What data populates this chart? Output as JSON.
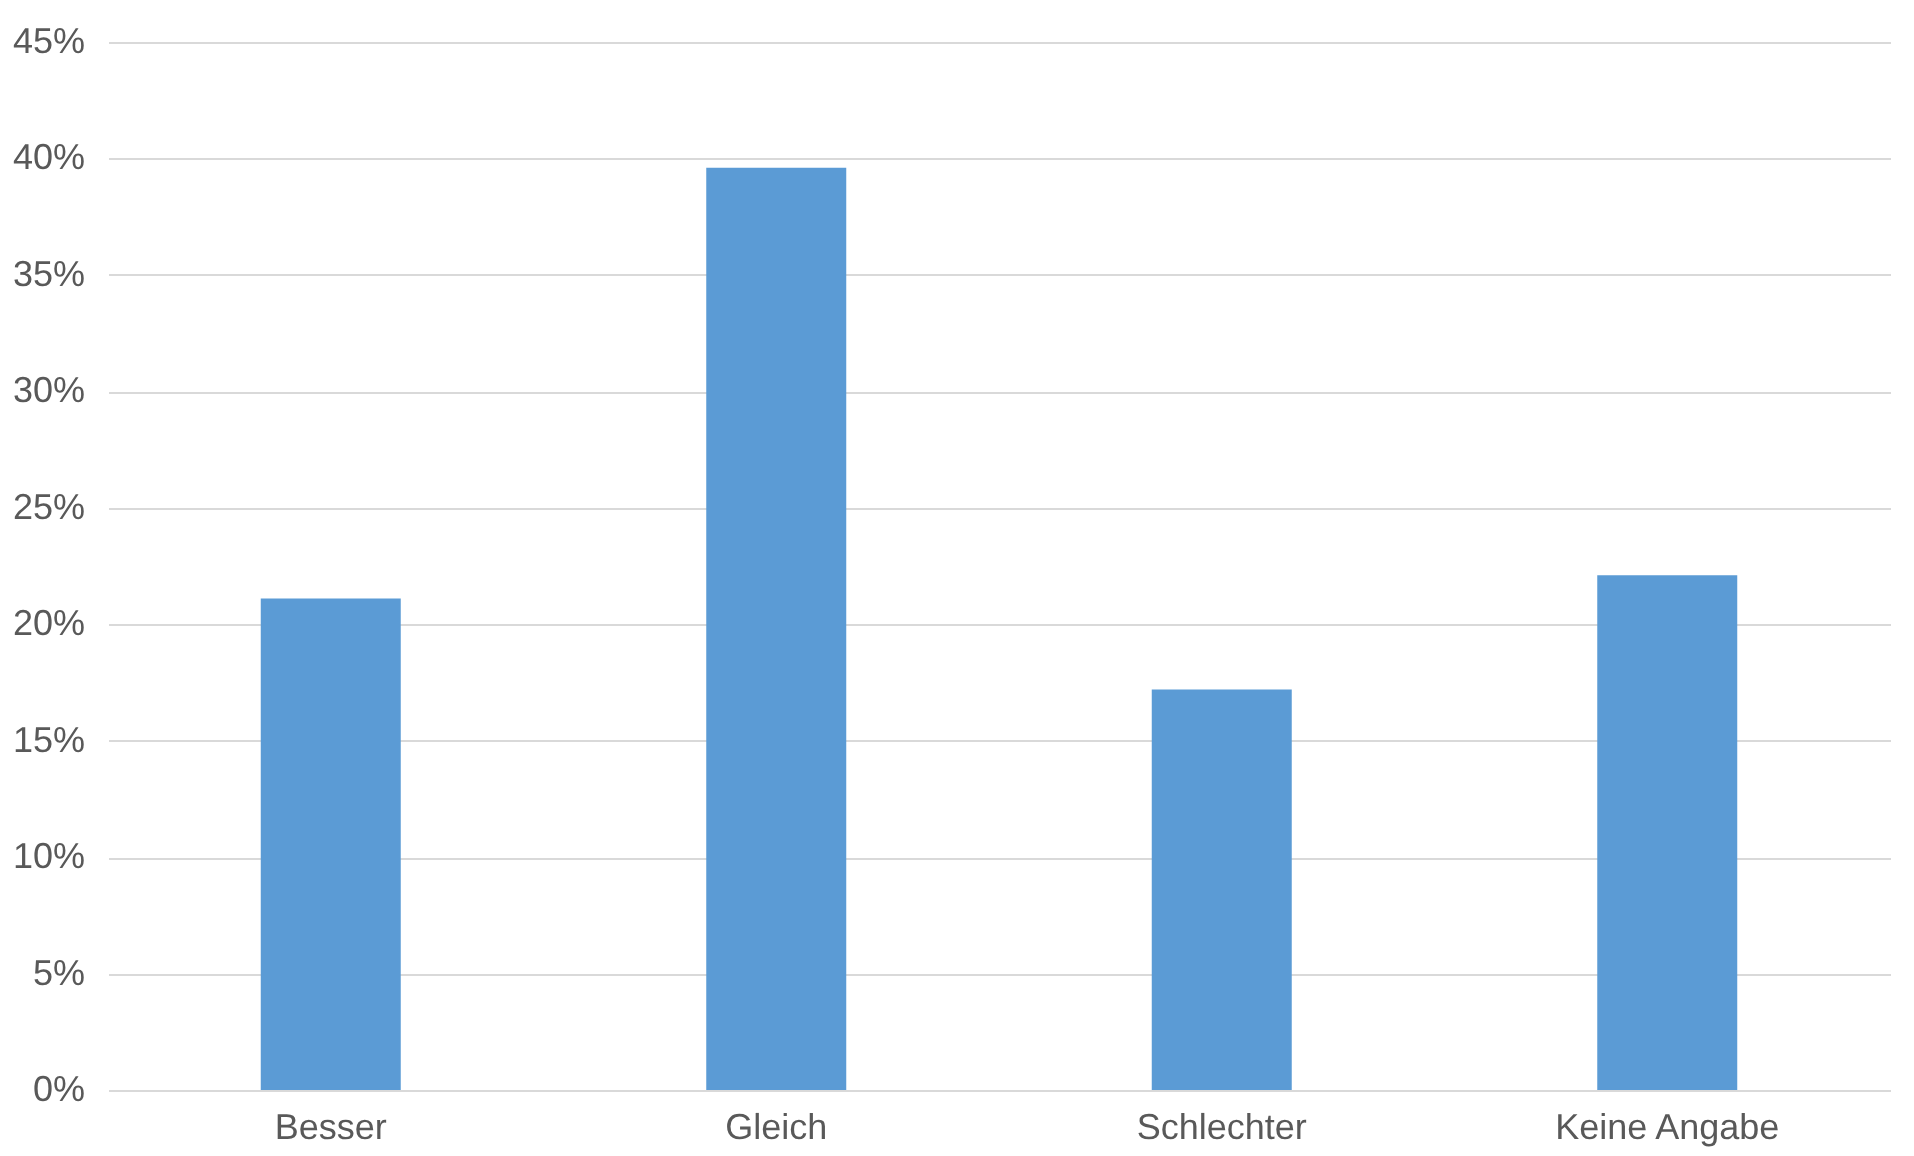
{
  "chart_data": {
    "type": "bar",
    "categories": [
      "Besser",
      "Gleich",
      "Schlechter",
      "Keine Angabe"
    ],
    "values": [
      21.1,
      39.6,
      17.2,
      22.1
    ],
    "color": "#5b9bd5",
    "ylim": [
      0,
      45
    ],
    "yticks": [
      {
        "value": 0,
        "label": "0%"
      },
      {
        "value": 5,
        "label": "5%"
      },
      {
        "value": 10,
        "label": "10%"
      },
      {
        "value": 15,
        "label": "15%"
      },
      {
        "value": 20,
        "label": "20%"
      },
      {
        "value": 25,
        "label": "25%"
      },
      {
        "value": 30,
        "label": "30%"
      },
      {
        "value": 35,
        "label": "35%"
      },
      {
        "value": 40,
        "label": "40%"
      },
      {
        "value": 45,
        "label": "45%"
      }
    ],
    "grid": "y"
  }
}
